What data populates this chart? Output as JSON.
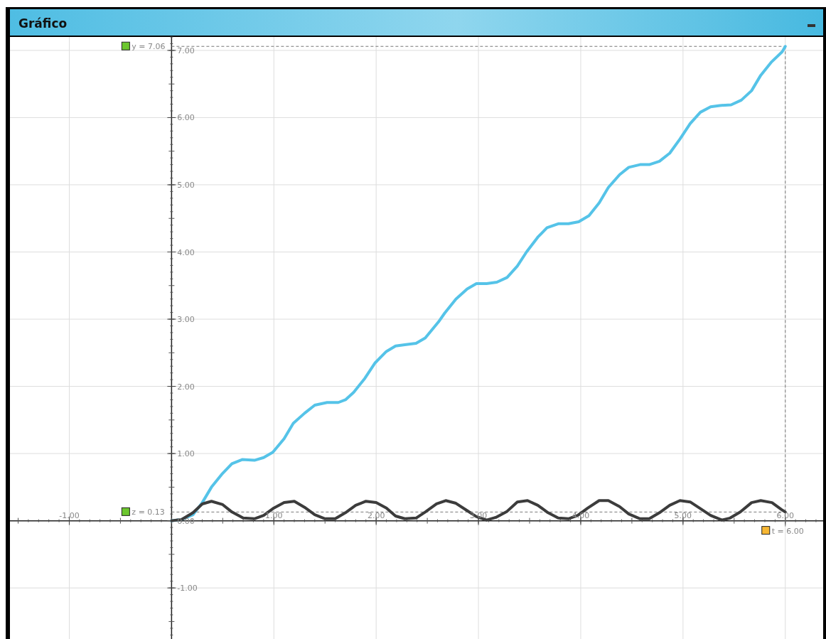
{
  "chart_data": {
    "type": "line",
    "title": "Gráfico",
    "xlim": [
      -1.58,
      6.37
    ],
    "ylim": [
      -1.76,
      7.2
    ],
    "xticks": [
      {
        "value": -1,
        "label": "-1.00"
      },
      {
        "value": 1,
        "label": "1.00"
      },
      {
        "value": 2,
        "label": "2.00"
      },
      {
        "value": 3,
        "label": "3.00"
      },
      {
        "value": 4,
        "label": "4.00"
      },
      {
        "value": 5,
        "label": "5.00"
      },
      {
        "value": 6,
        "label": "6.00"
      }
    ],
    "yticks": [
      {
        "value": -1,
        "label": "-1.00"
      },
      {
        "value": 0,
        "label": "0.00"
      },
      {
        "value": 1,
        "label": "1.00"
      },
      {
        "value": 2,
        "label": "2.00"
      },
      {
        "value": 3,
        "label": "3.00"
      },
      {
        "value": 4,
        "label": "4.00"
      },
      {
        "value": 5,
        "label": "5.00"
      },
      {
        "value": 6,
        "label": "6.00"
      },
      {
        "value": 7,
        "label": "7.00"
      }
    ],
    "grid": true,
    "marker": "none",
    "line_style": "solid",
    "series": [
      {
        "color": "#55c3e8",
        "x": [
          0,
          0.1,
          0.21,
          0.3,
          0.39,
          0.49,
          0.59,
          0.69,
          0.81,
          0.9,
          0.99,
          1.1,
          1.19,
          1.3,
          1.4,
          1.52,
          1.63,
          1.7,
          1.78,
          1.89,
          1.99,
          2.1,
          2.19,
          2.28,
          2.39,
          2.48,
          2.61,
          2.67,
          2.78,
          2.89,
          2.98,
          3.08,
          3.18,
          3.28,
          3.38,
          3.47,
          3.58,
          3.67,
          3.78,
          3.88,
          3.98,
          4.08,
          4.18,
          4.27,
          4.38,
          4.47,
          4.58,
          4.67,
          4.77,
          4.87,
          4.97,
          5.07,
          5.17,
          5.27,
          5.36,
          5.47,
          5.57,
          5.67,
          5.76,
          5.86,
          5.97,
          6
        ],
        "values": [
          0,
          0.02,
          0.09,
          0.27,
          0.5,
          0.69,
          0.85,
          0.91,
          0.9,
          0.94,
          1.02,
          1.22,
          1.45,
          1.6,
          1.72,
          1.76,
          1.76,
          1.8,
          1.91,
          2.12,
          2.35,
          2.52,
          2.6,
          2.62,
          2.64,
          2.72,
          2.96,
          3.09,
          3.3,
          3.45,
          3.53,
          3.53,
          3.55,
          3.62,
          3.79,
          4,
          4.22,
          4.36,
          4.42,
          4.42,
          4.45,
          4.54,
          4.73,
          4.96,
          5.15,
          5.26,
          5.3,
          5.3,
          5.35,
          5.47,
          5.68,
          5.91,
          6.08,
          6.16,
          6.18,
          6.19,
          6.26,
          6.4,
          6.63,
          6.82,
          6.98,
          7.06
        ]
      },
      {
        "color": "#3c3c3c",
        "x": [
          0,
          0.1,
          0.21,
          0.3,
          0.39,
          0.5,
          0.59,
          0.7,
          0.81,
          0.9,
          1,
          1.1,
          1.2,
          1.3,
          1.4,
          1.5,
          1.6,
          1.7,
          1.8,
          1.9,
          2,
          2.1,
          2.19,
          2.28,
          2.39,
          2.48,
          2.59,
          2.68,
          2.78,
          2.88,
          2.98,
          3.08,
          3.17,
          3.28,
          3.38,
          3.48,
          3.58,
          3.68,
          3.78,
          3.88,
          3.97,
          4.07,
          4.18,
          4.27,
          4.38,
          4.47,
          4.58,
          4.67,
          4.77,
          4.87,
          4.97,
          5.07,
          5.16,
          5.27,
          5.38,
          5.46,
          5.56,
          5.67,
          5.76,
          5.87,
          5.96,
          6
        ],
        "values": [
          0,
          0.02,
          0.12,
          0.25,
          0.29,
          0.24,
          0.13,
          0.04,
          0.03,
          0.08,
          0.19,
          0.27,
          0.29,
          0.2,
          0.09,
          0.03,
          0.03,
          0.12,
          0.23,
          0.29,
          0.27,
          0.19,
          0.07,
          0.03,
          0.04,
          0.13,
          0.25,
          0.3,
          0.26,
          0.16,
          0.06,
          0.01,
          0.05,
          0.14,
          0.28,
          0.3,
          0.23,
          0.12,
          0.04,
          0.03,
          0.08,
          0.19,
          0.3,
          0.3,
          0.21,
          0.1,
          0.03,
          0.03,
          0.12,
          0.23,
          0.3,
          0.28,
          0.19,
          0.08,
          0.01,
          0.04,
          0.13,
          0.27,
          0.3,
          0.27,
          0.17,
          0.13
        ]
      }
    ],
    "ref_lines": [
      {
        "axis": "y",
        "value": 7.06,
        "label": "y = 7.06",
        "color": "#777777",
        "line_style": "dashed"
      },
      {
        "axis": "y",
        "value": 0.13,
        "label": "z = 0.13",
        "color": "#777777",
        "line_style": "dashed"
      },
      {
        "axis": "x",
        "value": 6,
        "label": "t = 6.00",
        "color": "#777777",
        "line_style": "dashed"
      }
    ]
  }
}
